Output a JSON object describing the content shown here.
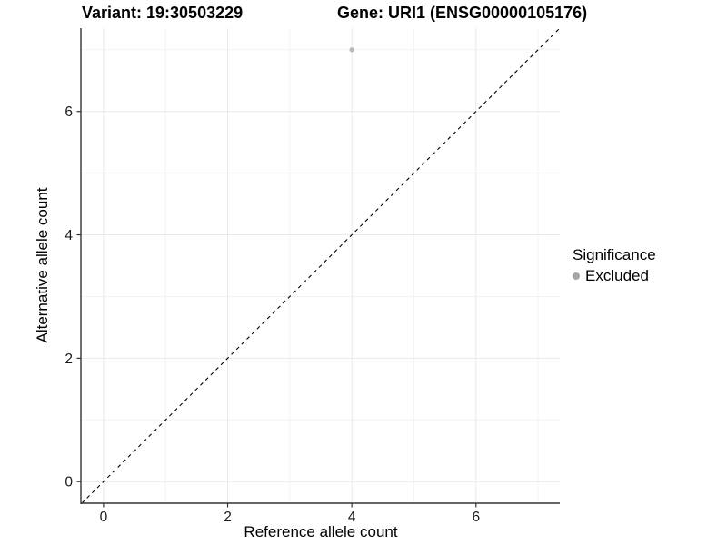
{
  "header": {
    "variant_title": "Variant: 19:30503229",
    "gene_title": "Gene: URI1 (ENSG00000105176)"
  },
  "chart_data": {
    "type": "scatter",
    "title": "",
    "xlabel": "Reference allele count",
    "ylabel": "Alternative allele count",
    "xlim": [
      -0.35,
      7.35
    ],
    "ylim": [
      -0.35,
      7.35
    ],
    "xticks": [
      0,
      2,
      4,
      6
    ],
    "yticks": [
      0,
      2,
      4,
      6
    ],
    "x_minor_ticks": [
      1,
      3,
      5,
      7
    ],
    "y_minor_ticks": [
      1,
      3,
      5,
      7
    ],
    "grid": true,
    "points": [
      {
        "x": 4,
        "y": 7,
        "significance": "Excluded"
      }
    ],
    "identity_line": {
      "style": "dashed",
      "from": [
        -0.35,
        -0.35
      ],
      "to": [
        7.35,
        7.35
      ],
      "color": "#000000"
    },
    "legend": {
      "title": "Significance",
      "position": "right",
      "entries": [
        {
          "label": "Excluded",
          "color": "#a6a6a6"
        }
      ]
    },
    "colors": {
      "excluded_point": "#b9b9b9",
      "grid_major": "#e9e9e9",
      "grid_minor": "#f3f3f3",
      "axis_line": "#333333",
      "tick_label": "#1a1a1a"
    }
  }
}
